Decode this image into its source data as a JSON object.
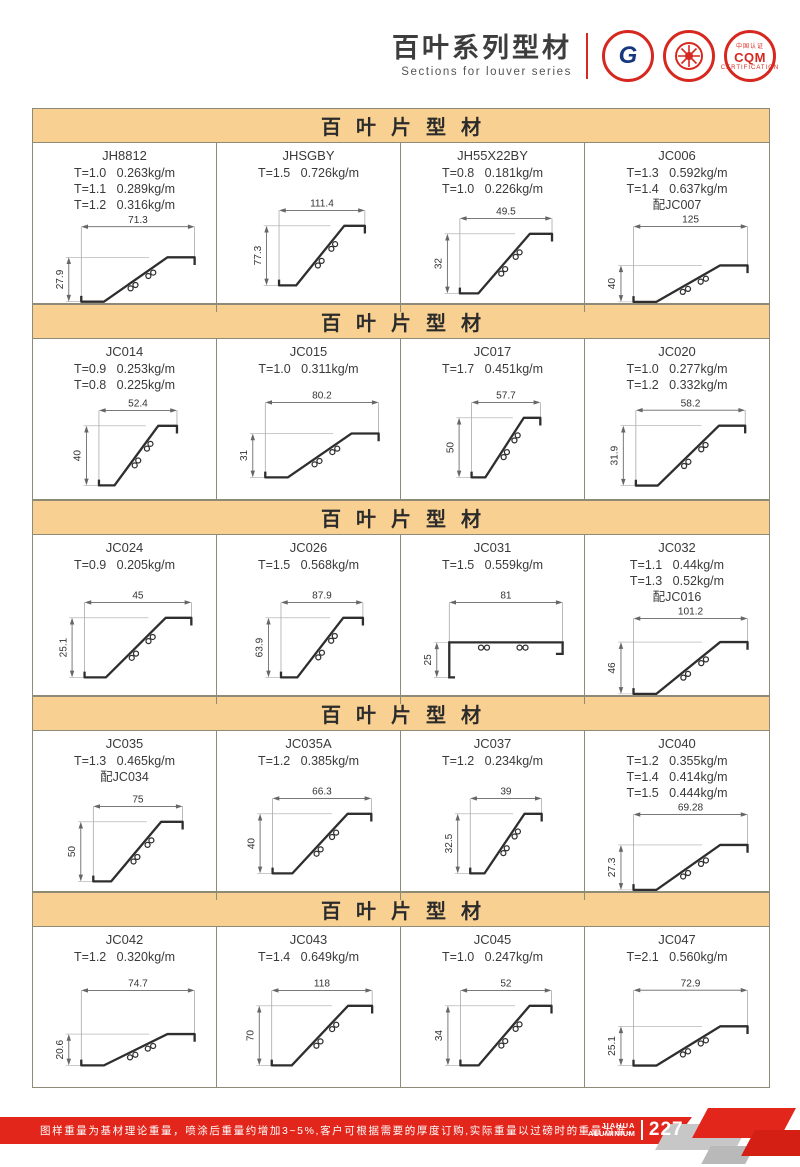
{
  "header": {
    "title": "百叶系列型材",
    "subtitle": "Sections for louver series",
    "logos": [
      {
        "id": "gb-certification-logo",
        "label": "G"
      },
      {
        "id": "round-seal-logo",
        "label": ""
      },
      {
        "id": "cqm-certification-logo",
        "label": "CQM",
        "arc_top": "中国认证",
        "arc_bottom": "CERTIFICATION"
      }
    ]
  },
  "section_header": "百叶片型材",
  "sections": [
    {
      "cells": [
        {
          "model": "JH8812",
          "specs": [
            "T=1.0   0.263kg/m",
            "T=1.1   0.289kg/m",
            "T=1.2   0.316kg/m"
          ],
          "dim_w": "71.3",
          "dim_h": "27.9",
          "shape": "diag"
        },
        {
          "model": "JHSGBY",
          "specs": [
            "T=1.5   0.726kg/m"
          ],
          "dim_w": "111.4",
          "dim_h": "77.3",
          "shape": "diag"
        },
        {
          "model": "JH55X22BY",
          "specs": [
            "T=0.8   0.181kg/m",
            "T=1.0   0.226kg/m"
          ],
          "dim_w": "49.5",
          "dim_h": "32",
          "shape": "diag"
        },
        {
          "model": "JC006",
          "specs": [
            "T=1.3   0.592kg/m",
            "T=1.4   0.637kg/m",
            "配JC007"
          ],
          "dim_w": "125",
          "dim_h": "40",
          "shape": "diag"
        }
      ]
    },
    {
      "cells": [
        {
          "model": "JC014",
          "specs": [
            "T=0.9   0.253kg/m",
            "T=0.8   0.225kg/m"
          ],
          "dim_w": "52.4",
          "dim_h": "40",
          "shape": "diag"
        },
        {
          "model": "JC015",
          "specs": [
            "T=1.0   0.311kg/m"
          ],
          "dim_w": "80.2",
          "dim_h": "31",
          "shape": "diag"
        },
        {
          "model": "JC017",
          "specs": [
            "T=1.7   0.451kg/m"
          ],
          "dim_w": "57.7",
          "dim_h": "50",
          "shape": "diag"
        },
        {
          "model": "JC020",
          "specs": [
            "T=1.0   0.277kg/m",
            "T=1.2   0.332kg/m"
          ],
          "dim_w": "58.2",
          "dim_h": "31.9",
          "shape": "diag"
        }
      ]
    },
    {
      "cells": [
        {
          "model": "JC024",
          "specs": [
            "T=0.9   0.205kg/m"
          ],
          "dim_w": "45",
          "dim_h": "25.1",
          "shape": "diag"
        },
        {
          "model": "JC026",
          "specs": [
            "T=1.5   0.568kg/m"
          ],
          "dim_w": "87.9",
          "dim_h": "63.9",
          "shape": "diag"
        },
        {
          "model": "JC031",
          "specs": [
            "T=1.5   0.559kg/m"
          ],
          "dim_w": "81",
          "dim_h": "25",
          "shape": "flat"
        },
        {
          "model": "JC032",
          "specs": [
            "T=1.1   0.44kg/m",
            "T=1.3   0.52kg/m",
            "配JC016"
          ],
          "dim_w": "101.2",
          "dim_h": "46",
          "shape": "diag"
        }
      ]
    },
    {
      "cells": [
        {
          "model": "JC035",
          "specs": [
            "T=1.3   0.465kg/m",
            "配JC034"
          ],
          "dim_w": "75",
          "dim_h": "50",
          "shape": "diag"
        },
        {
          "model": "JC035A",
          "specs": [
            "T=1.2   0.385kg/m"
          ],
          "dim_w": "66.3",
          "dim_h": "40",
          "shape": "diag"
        },
        {
          "model": "JC037",
          "specs": [
            "T=1.2   0.234kg/m"
          ],
          "dim_w": "39",
          "dim_h": "32.5",
          "shape": "diag"
        },
        {
          "model": "JC040",
          "specs": [
            "T=1.2   0.355kg/m",
            "T=1.4   0.414kg/m",
            "T=1.5   0.444kg/m"
          ],
          "dim_w": "69.28",
          "dim_h": "27.3",
          "shape": "diag"
        }
      ]
    },
    {
      "cells": [
        {
          "model": "JC042",
          "specs": [
            "T=1.2   0.320kg/m"
          ],
          "dim_w": "74.7",
          "dim_h": "20.6",
          "shape": "diag"
        },
        {
          "model": "JC043",
          "specs": [
            "T=1.4   0.649kg/m"
          ],
          "dim_w": "118",
          "dim_h": "70",
          "shape": "diag"
        },
        {
          "model": "JC045",
          "specs": [
            "T=1.0   0.247kg/m"
          ],
          "dim_w": "52",
          "dim_h": "34",
          "shape": "diag"
        },
        {
          "model": "JC047",
          "specs": [
            "T=2.1   0.560kg/m"
          ],
          "dim_w": "72.9",
          "dim_h": "25.1",
          "shape": "diag"
        }
      ]
    }
  ],
  "footer": {
    "note": "图样重量为基材理论重量，喷涂后重量约增加3~5%,客户可根据需要的厚度订购,实际重量以过磅时的重量为准。",
    "brand_line1": "JIAHUA",
    "brand_line2": "ALUMINIUM",
    "page_number": "227"
  },
  "colors": {
    "band": "#f8d092",
    "red": "#e2261c",
    "border": "#8d8b77",
    "profile_stroke": "#2e2e2e",
    "dim_line": "#666666"
  }
}
